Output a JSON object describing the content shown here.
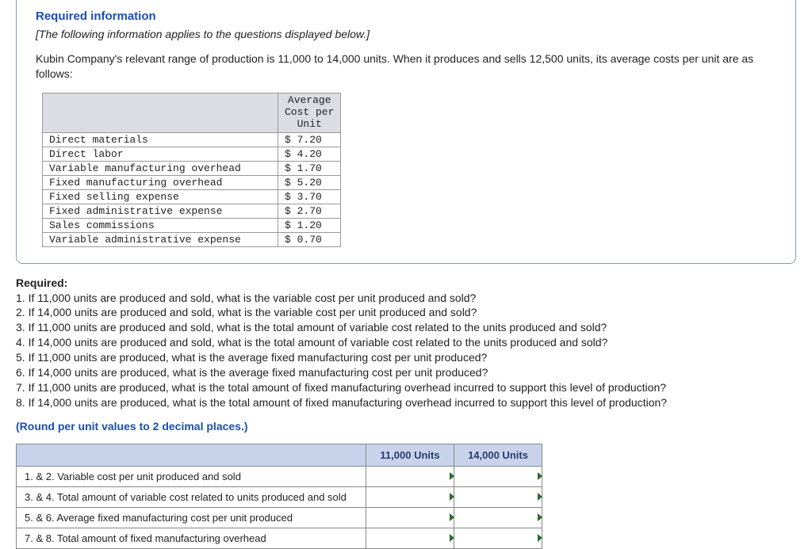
{
  "info_box": {
    "header": "Required information",
    "subline": "[The following information applies to the questions displayed below.]",
    "paragraph": "Kubin Company's relevant range of production is 11,000 to 14,000 units. When it produces and sells 12,500 units, its average costs per unit are as follows:"
  },
  "cost_table": {
    "header_lines": [
      "Average",
      "Cost per",
      "Unit"
    ],
    "rows": [
      {
        "label": "Direct materials",
        "value": "$ 7.20"
      },
      {
        "label": "Direct labor",
        "value": "$ 4.20"
      },
      {
        "label": "Variable manufacturing overhead",
        "value": "$ 1.70"
      },
      {
        "label": "Fixed manufacturing overhead",
        "value": "$ 5.20"
      },
      {
        "label": "Fixed selling expense",
        "value": "$ 3.70"
      },
      {
        "label": "Fixed administrative expense",
        "value": "$ 2.70"
      },
      {
        "label": "Sales commissions",
        "value": "$ 1.20"
      },
      {
        "label": "Variable administrative expense",
        "value": "$ 0.70"
      }
    ]
  },
  "required": {
    "header": "Required:",
    "questions": [
      "1. If 11,000 units are produced and sold, what is the variable cost per unit produced and sold?",
      "2. If 14,000 units are produced and sold, what is the variable cost per unit produced and sold?",
      "3. If 11,000 units are produced and sold, what is the total amount of variable cost related to the units produced and sold?",
      "4. If 14,000 units are produced and sold, what is the total amount of variable cost related to the units produced and sold?",
      "5. If 11,000 units are produced, what is the average fixed manufacturing cost per unit produced?",
      "6. If 14,000 units are produced, what is the average fixed manufacturing cost per unit produced?",
      "7. If 11,000 units are produced, what is the total amount of fixed manufacturing overhead incurred to support this level of production?",
      "8. If 14,000 units are produced, what is the total amount of fixed manufacturing overhead incurred to support this level of production?"
    ],
    "round_note": "(Round per unit values to 2 decimal places.)"
  },
  "answer_table": {
    "col_headers": [
      "11,000 Units",
      "14,000 Units"
    ],
    "rows": [
      "1. & 2. Variable cost per unit produced and sold",
      "3. & 4. Total amount of variable cost related to units produced and sold",
      "5. & 6. Average fixed manufacturing cost per unit produced",
      "7. & 8. Total amount of fixed manufacturing overhead"
    ]
  },
  "style": {
    "accent_color": "#1b4eb3",
    "header_bg": "#c8d3eb",
    "cost_header_bg": "#dcdde2",
    "marker_color": "#2d6b2d",
    "font_body": "Arial",
    "font_mono": "Courier New",
    "body_fontsize": 14,
    "mono_fontsize": 13
  }
}
